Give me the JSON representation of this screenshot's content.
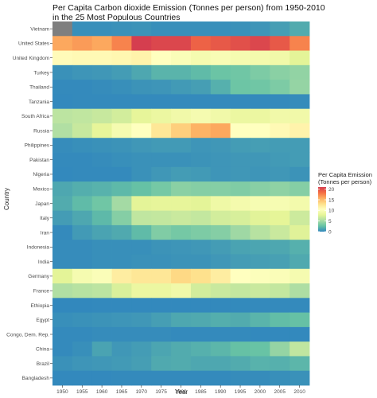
{
  "chart_data": {
    "type": "heatmap",
    "title_line1": "Per Capita Carbon dioxide Emission (Tonnes per person) from 1950-2010",
    "title_line2": " in the 25 Most Populous Countries",
    "xlabel": "Year",
    "ylabel": "Country",
    "x": [
      "1950",
      "1955",
      "1960",
      "1965",
      "1970",
      "1975",
      "1980",
      "1985",
      "1990",
      "1995",
      "2000",
      "2005",
      "2010"
    ],
    "y": [
      "Vietnam",
      "United States",
      "United Kingdom",
      "Turkey",
      "Thailand",
      "Tanzania",
      "South Africa",
      "Russia",
      "Philippines",
      "Pakistan",
      "Nigeria",
      "Mexico",
      "Japan",
      "Italy",
      "Iran",
      "Indonesia",
      "India",
      "Germany",
      "France",
      "Ethiopia",
      "Egypt",
      "Congo, Dem. Rep.",
      "China",
      "Brazil",
      "Bangladesh"
    ],
    "values": [
      [
        null,
        0.3,
        0.3,
        0.4,
        0.5,
        0.3,
        0.3,
        0.3,
        0.3,
        0.4,
        0.6,
        1.0,
        1.6
      ],
      [
        16.0,
        16.5,
        16.0,
        17.5,
        21.0,
        20.5,
        20.5,
        19.0,
        19.5,
        20.0,
        20.5,
        19.5,
        17.5
      ],
      [
        10.8,
        11.0,
        11.0,
        11.2,
        11.5,
        10.5,
        10.0,
        9.5,
        9.8,
        9.5,
        9.3,
        9.0,
        7.8
      ],
      [
        0.4,
        0.6,
        0.7,
        0.9,
        1.4,
        2.0,
        2.0,
        2.3,
        2.8,
        3.0,
        3.5,
        4.0,
        4.3
      ],
      [
        0.1,
        0.1,
        0.2,
        0.3,
        0.5,
        0.6,
        0.8,
        1.0,
        1.8,
        2.9,
        3.0,
        3.5,
        4.4
      ],
      [
        0.05,
        0.1,
        0.1,
        0.1,
        0.1,
        0.1,
        0.1,
        0.1,
        0.1,
        0.1,
        0.1,
        0.1,
        0.2
      ],
      [
        6.0,
        6.2,
        6.5,
        7.0,
        8.0,
        8.5,
        9.0,
        9.5,
        9.0,
        8.5,
        8.5,
        9.0,
        9.0
      ],
      [
        5.5,
        6.5,
        8.0,
        9.5,
        10.5,
        12.5,
        14.0,
        15.5,
        16.0,
        10.5,
        10.5,
        11.0,
        11.5
      ],
      [
        0.2,
        0.3,
        0.4,
        0.5,
        0.7,
        0.8,
        0.8,
        0.6,
        0.7,
        0.9,
        1.0,
        0.9,
        0.9
      ],
      [
        0.1,
        0.1,
        0.2,
        0.3,
        0.4,
        0.4,
        0.4,
        0.5,
        0.6,
        0.7,
        0.7,
        0.8,
        0.9
      ],
      [
        0.05,
        0.1,
        0.1,
        0.1,
        0.4,
        0.7,
        0.9,
        0.8,
        0.6,
        0.7,
        0.6,
        0.7,
        0.5
      ],
      [
        1.4,
        1.7,
        1.9,
        2.2,
        2.6,
        3.2,
        4.0,
        3.8,
        3.8,
        3.6,
        3.9,
        4.2,
        3.8
      ],
      [
        1.6,
        2.3,
        3.0,
        5.0,
        7.8,
        8.0,
        8.0,
        7.8,
        8.8,
        9.3,
        9.6,
        9.6,
        9.2
      ],
      [
        0.9,
        1.4,
        2.2,
        3.8,
        6.2,
        6.3,
        6.6,
        6.3,
        7.0,
        7.2,
        7.7,
        7.9,
        6.7
      ],
      [
        0.1,
        0.8,
        1.2,
        1.5,
        2.3,
        3.6,
        3.2,
        3.5,
        3.8,
        4.8,
        5.8,
        6.6,
        7.6
      ],
      [
        0.2,
        0.2,
        0.3,
        0.3,
        0.3,
        0.5,
        0.6,
        0.7,
        0.9,
        1.2,
        1.3,
        1.4,
        1.8
      ],
      [
        0.2,
        0.2,
        0.3,
        0.3,
        0.4,
        0.4,
        0.5,
        0.5,
        0.7,
        0.9,
        1.0,
        1.1,
        1.5
      ],
      [
        7.8,
        9.5,
        10.0,
        12.0,
        12.5,
        12.5,
        13.5,
        13.0,
        12.0,
        10.5,
        10.2,
        10.0,
        9.5
      ],
      [
        5.5,
        5.8,
        6.0,
        7.3,
        8.5,
        8.5,
        9.0,
        7.0,
        6.6,
        6.3,
        6.6,
        6.3,
        5.4
      ],
      [
        0.02,
        0.02,
        0.03,
        0.04,
        0.05,
        0.05,
        0.05,
        0.05,
        0.06,
        0.07,
        0.08,
        0.09,
        0.1
      ],
      [
        0.3,
        0.4,
        0.5,
        0.6,
        0.7,
        1.0,
        1.4,
        1.5,
        1.7,
        1.6,
        2.0,
        2.4,
        2.6
      ],
      [
        0.1,
        0.1,
        0.2,
        0.2,
        0.2,
        0.2,
        0.1,
        0.1,
        0.1,
        0.1,
        0.03,
        0.03,
        0.03
      ],
      [
        0.1,
        0.3,
        1.2,
        0.7,
        0.9,
        1.3,
        1.6,
        1.8,
        2.1,
        2.6,
        2.7,
        4.4,
        6.2
      ],
      [
        0.4,
        0.6,
        0.7,
        0.8,
        1.0,
        1.5,
        1.6,
        1.4,
        1.4,
        1.6,
        1.9,
        1.8,
        2.1
      ],
      [
        0.03,
        0.03,
        0.04,
        0.1,
        0.1,
        0.1,
        0.1,
        0.1,
        0.1,
        0.2,
        0.2,
        0.3,
        0.4
      ]
    ],
    "legend": {
      "title_line1": "Per Capita Emission",
      "title_line2": "(Tonnes per person)",
      "ticks": [
        "20",
        "15",
        "10",
        "5",
        "0"
      ],
      "min": 0,
      "max": 21
    },
    "colors": {
      "na": "#7f7f7f",
      "scale": [
        "#3288bd",
        "#66c2a5",
        "#abdda4",
        "#e6f598",
        "#ffffbf",
        "#fee08b",
        "#fdae61",
        "#f46d43",
        "#d53e4f"
      ],
      "panel_background": "#ebebeb"
    }
  }
}
